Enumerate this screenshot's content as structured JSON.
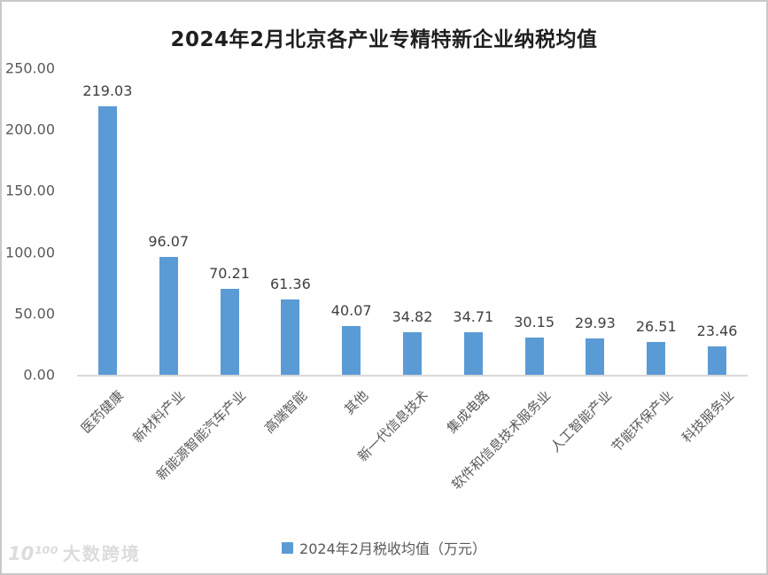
{
  "watermark": {
    "logo": "10¹⁰⁰",
    "text": "大数跨境"
  },
  "chart_data": {
    "type": "bar",
    "title": "2024年2月北京各产业专精特新企业纳税均值",
    "legend": "2024年2月税收均值（万元）",
    "legend_position": "bottom",
    "categories": [
      "医药健康",
      "新材料产业",
      "新能源智能汽车产业",
      "高端智能",
      "其他",
      "新一代信息技术",
      "集成电路",
      "软件和信息技术服务业",
      "人工智能产业",
      "节能环保产业",
      "科技服务业"
    ],
    "values": [
      219.03,
      96.07,
      70.21,
      61.36,
      40.07,
      34.82,
      34.71,
      30.15,
      29.93,
      26.51,
      23.46
    ],
    "xlabel": "",
    "ylabel": "",
    "ylim": [
      0,
      250
    ],
    "ytick_step": 50,
    "ytick_decimals": 2,
    "value_label_decimals": 2,
    "grid": false,
    "bar_color": "#5b9bd5",
    "value_label_color": "#404040",
    "axis_text_color": "#595959",
    "axis_line_color": "#d9d9d9"
  }
}
